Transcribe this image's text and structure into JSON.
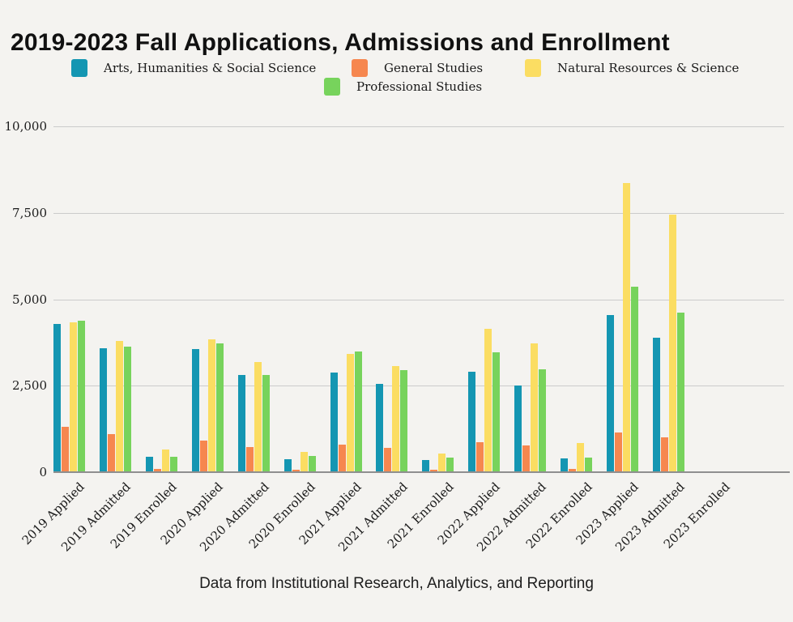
{
  "title": "2019-2023 Fall Applications, Admissions and Enrollment",
  "footer": "Data from Institutional Research, Analytics, and Reporting",
  "chart_data": {
    "type": "bar",
    "title": "2019-2023 Fall Applications, Admissions and Enrollment",
    "categories": [
      "2019 Applied",
      "2019 Admitted",
      "2019 Enrolled",
      "2020 Applied",
      "2020 Admitted",
      "2020 Enrolled",
      "2021 Applied",
      "2021 Admitted",
      "2021 Enrolled",
      "2022 Applied",
      "2022 Admitted",
      "2022 Enrolled",
      "2023 Applied",
      "2023 Admitted",
      "2023 Enrolled"
    ],
    "series": [
      {
        "name": "Arts, Humanities & Social Science",
        "color": "#1496b2",
        "values": [
          4290,
          3590,
          450,
          3570,
          2810,
          370,
          2880,
          2560,
          340,
          2900,
          2500,
          390,
          4550,
          3890,
          0
        ]
      },
      {
        "name": "General Studies",
        "color": "#f6874f",
        "values": [
          1300,
          1100,
          100,
          920,
          720,
          60,
          790,
          710,
          60,
          870,
          780,
          100,
          1140,
          1000,
          0
        ]
      },
      {
        "name": "Natural Resources & Science",
        "color": "#fbdd62",
        "values": [
          4340,
          3800,
          660,
          3830,
          3180,
          590,
          3410,
          3070,
          550,
          4150,
          3730,
          840,
          8350,
          7450,
          0
        ]
      },
      {
        "name": "Professional Studies",
        "color": "#77d35c",
        "values": [
          4380,
          3640,
          450,
          3730,
          2820,
          460,
          3490,
          2950,
          430,
          3470,
          2980,
          430,
          5370,
          4610,
          0
        ]
      }
    ],
    "ylim": [
      0,
      10000
    ],
    "yticks": [
      0,
      2500,
      5000,
      7500,
      10000
    ],
    "ytick_labels": [
      "0",
      "2,500",
      "5,000",
      "7,500",
      "10,000"
    ],
    "grid": true,
    "legend_position": "top",
    "xlabel": "",
    "ylabel": ""
  }
}
